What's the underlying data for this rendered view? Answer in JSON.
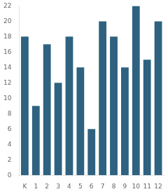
{
  "chart_data": {
    "type": "bar",
    "categories": [
      "K",
      "1",
      "2",
      "3",
      "4",
      "5",
      "6",
      "7",
      "8",
      "9",
      "10",
      "11",
      "12"
    ],
    "values": [
      18,
      9,
      17,
      12,
      18,
      14,
      6,
      20,
      18,
      14,
      22,
      15,
      20
    ],
    "color": "#2e6280",
    "ylim": [
      0,
      22
    ],
    "yticks": [
      0,
      2,
      4,
      6,
      8,
      10,
      12,
      14,
      16,
      18,
      20,
      22
    ],
    "grid": false
  }
}
